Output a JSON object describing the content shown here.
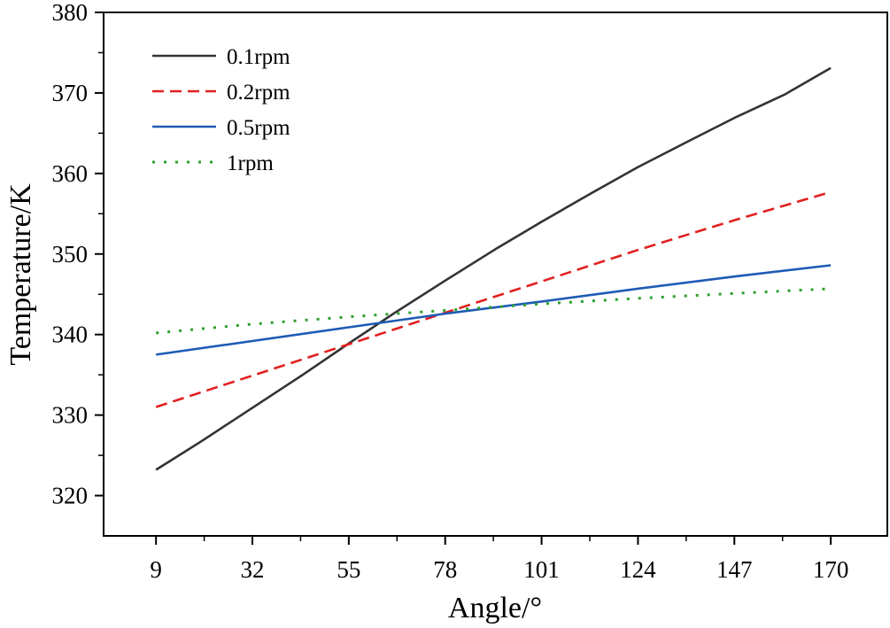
{
  "chart_data": {
    "type": "line",
    "title": "",
    "xlabel": "Angle/°",
    "ylabel": "Temperature/K",
    "xlim": [
      -3.5,
      183.5
    ],
    "ylim": [
      315,
      380
    ],
    "xticks": [
      9,
      32,
      55,
      78,
      101,
      124,
      147,
      170
    ],
    "yticks": [
      320,
      330,
      340,
      350,
      360,
      370,
      380
    ],
    "x_minor_step": 11.5,
    "y_minor_step": 5,
    "grid": false,
    "legend_position": "top-left",
    "series": [
      {
        "name": "0.1rpm",
        "color": "#333333",
        "dash": "solid",
        "x": [
          9,
          20,
          32,
          44,
          55,
          66,
          78,
          90,
          101,
          113,
          124,
          136,
          147,
          159,
          170
        ],
        "y": [
          323.2,
          326.8,
          330.9,
          335.0,
          338.9,
          342.7,
          346.7,
          350.6,
          354.0,
          357.6,
          360.8,
          364.0,
          366.9,
          369.8,
          373.1
        ]
      },
      {
        "name": "0.2rpm",
        "color": "#e02020",
        "dash": "dashed",
        "x": [
          9,
          32,
          55,
          78,
          101,
          124,
          147,
          170
        ],
        "y": [
          331.0,
          334.9,
          338.8,
          342.7,
          346.6,
          350.5,
          354.2,
          357.7
        ]
      },
      {
        "name": "0.5rpm",
        "color": "#1f5bb5",
        "dash": "solid",
        "x": [
          9,
          32,
          55,
          78,
          101,
          124,
          147,
          170
        ],
        "y": [
          337.5,
          339.2,
          340.9,
          342.6,
          344.1,
          345.7,
          347.2,
          348.6
        ]
      },
      {
        "name": "1rpm",
        "color": "#2ca02c",
        "dash": "dotted",
        "x": [
          9,
          32,
          55,
          78,
          101,
          124,
          147,
          170
        ],
        "y": [
          340.2,
          341.3,
          342.2,
          343.0,
          343.8,
          344.5,
          345.1,
          345.7
        ]
      }
    ]
  }
}
